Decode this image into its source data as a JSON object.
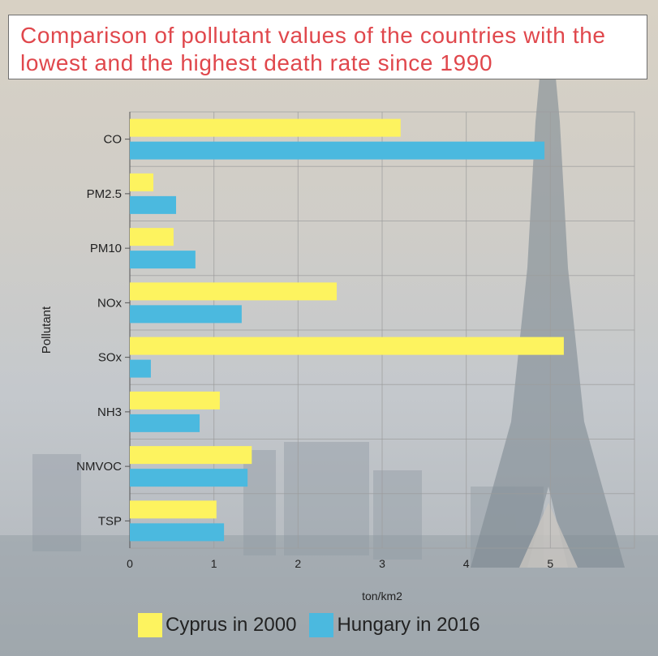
{
  "colors": {
    "cyprus": "#fdf35f",
    "hungary": "#4bb9df",
    "title": "#e0474c"
  },
  "chart_data": {
    "type": "bar",
    "orientation": "horizontal",
    "title": "Comparison of pollutant values of the countries with the lowest and the highest death rate since 1990",
    "xlabel": "ton/km2",
    "ylabel": "Pollutant",
    "categories": [
      "CO",
      "PM2.5",
      "PM10",
      "NOx",
      "SOx",
      "NH3",
      "NMVOC",
      "TSP"
    ],
    "series": [
      {
        "name": "Cyprus in 2000",
        "values": [
          3.22,
          0.28,
          0.52,
          2.46,
          5.16,
          1.07,
          1.45,
          1.03
        ]
      },
      {
        "name": "Hungary in 2016",
        "values": [
          4.93,
          0.55,
          0.78,
          1.33,
          0.25,
          0.83,
          1.4,
          1.12
        ]
      }
    ],
    "xlim": [
      0,
      6
    ],
    "xticks": [
      0,
      1,
      2,
      3,
      4,
      5
    ],
    "grid": true,
    "legend_position": "bottom"
  }
}
